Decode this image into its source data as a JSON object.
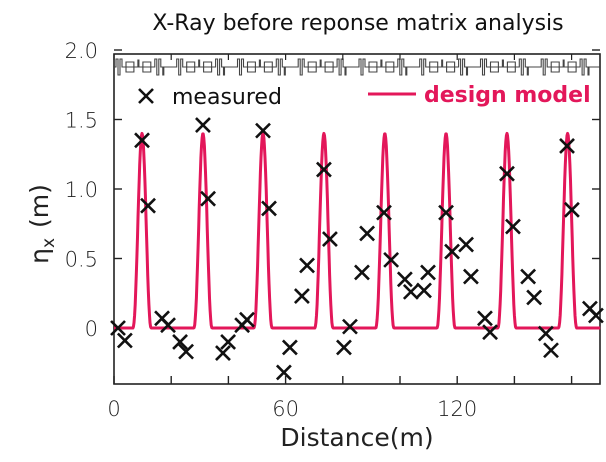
{
  "chart_data": {
    "type": "line",
    "title": "X-Ray before reponse matrix analysis",
    "xlabel": "Distance(m)",
    "ylabel": "η_x (m)",
    "ylabel_main": "η",
    "ylabel_sub": "x",
    "ylabel_unit": "(m)",
    "xlim": [
      0,
      170
    ],
    "ylim": [
      -0.41,
      2.0
    ],
    "x_ticks": [
      0,
      20,
      40,
      60,
      80,
      100,
      120,
      140,
      160
    ],
    "x_tick_labels": [
      {
        "value": 0,
        "label": "0"
      },
      {
        "value": 60,
        "label": "60"
      },
      {
        "value": 120,
        "label": "120"
      }
    ],
    "y_ticks": [
      {
        "value": 2.0,
        "label": "2.0"
      },
      {
        "value": 1.5,
        "label": "1.5"
      },
      {
        "value": 1.0,
        "label": "1.0"
      },
      {
        "value": 0.5,
        "label": "0.5"
      },
      {
        "value": 0,
        "label": "0"
      }
    ],
    "grid": false,
    "legend": [
      {
        "name": "measured",
        "marker": "X",
        "color": "#111111",
        "placement": "top-left"
      },
      {
        "name": "design model",
        "marker": "line",
        "color": "#e3175a",
        "placement": "top-right"
      }
    ],
    "lattice_band": {
      "y": 1.9,
      "cells": 8,
      "description": "magnet lattice schematic"
    },
    "series": [
      {
        "name": "design model",
        "kind": "line",
        "color": "#e3175a",
        "peak_positions": [
          9.8,
          31.1,
          52.1,
          73.4,
          94.7,
          116.1,
          137.4,
          158.6
        ],
        "peak_value": 1.4,
        "baseline": 0.0,
        "peak_half_width_m": 3.2
      },
      {
        "name": "measured",
        "kind": "scatter",
        "marker": "X",
        "color": "#111111",
        "points": [
          [
            1.4,
            0.0
          ],
          [
            3.8,
            -0.09
          ],
          [
            9.8,
            1.35
          ],
          [
            11.9,
            0.88
          ],
          [
            16.8,
            0.07
          ],
          [
            18.9,
            0.02
          ],
          [
            23.1,
            -0.1
          ],
          [
            25.2,
            -0.17
          ],
          [
            31.1,
            1.46
          ],
          [
            32.9,
            0.93
          ],
          [
            38.1,
            -0.18
          ],
          [
            39.9,
            -0.1
          ],
          [
            44.8,
            0.02
          ],
          [
            46.5,
            0.06
          ],
          [
            52.1,
            1.42
          ],
          [
            54.2,
            0.86
          ],
          [
            59.4,
            -0.32
          ],
          [
            61.5,
            -0.14
          ],
          [
            65.7,
            0.23
          ],
          [
            67.5,
            0.45
          ],
          [
            73.4,
            1.14
          ],
          [
            75.5,
            0.64
          ],
          [
            80.4,
            -0.14
          ],
          [
            82.5,
            0.01
          ],
          [
            86.7,
            0.4
          ],
          [
            88.5,
            0.68
          ],
          [
            94.4,
            0.83
          ],
          [
            96.9,
            0.49
          ],
          [
            101.7,
            0.35
          ],
          [
            103.8,
            0.26
          ],
          [
            108.4,
            0.27
          ],
          [
            109.8,
            0.4
          ],
          [
            116.1,
            0.83
          ],
          [
            118.2,
            0.55
          ],
          [
            123.1,
            0.6
          ],
          [
            124.8,
            0.37
          ],
          [
            129.7,
            0.07
          ],
          [
            131.5,
            -0.03
          ],
          [
            137.4,
            1.11
          ],
          [
            139.5,
            0.73
          ],
          [
            144.8,
            0.37
          ],
          [
            146.9,
            0.22
          ],
          [
            151.0,
            -0.04
          ],
          [
            152.8,
            -0.16
          ],
          [
            158.4,
            1.31
          ],
          [
            160.1,
            0.85
          ],
          [
            166.4,
            0.14
          ],
          [
            168.5,
            0.09
          ]
        ]
      }
    ]
  }
}
